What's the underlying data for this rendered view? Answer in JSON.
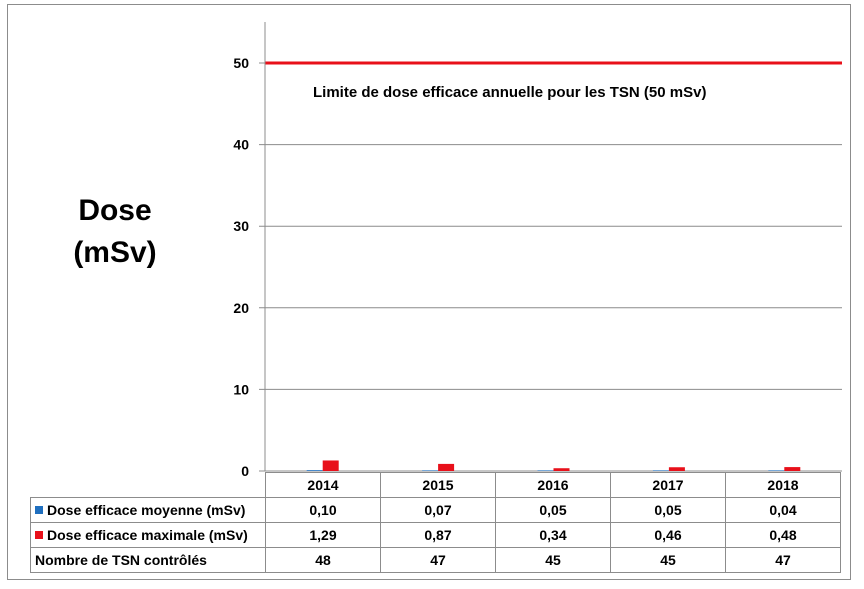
{
  "chart_data": {
    "type": "bar",
    "title": "",
    "ylabel_line1": "Dose",
    "ylabel_line2": "(mSv)",
    "ylim": [
      0,
      55
    ],
    "yticks": [
      0,
      10,
      20,
      30,
      40,
      50
    ],
    "grid": true,
    "categories": [
      "2014",
      "2015",
      "2016",
      "2017",
      "2018"
    ],
    "series": [
      {
        "name": "Dose efficace moyenne (mSv)",
        "color": "#1f6fbf",
        "values": [
          0.1,
          0.07,
          0.05,
          0.05,
          0.04
        ],
        "labels": [
          "0,10",
          "0,07",
          "0,05",
          "0,05",
          "0,04"
        ]
      },
      {
        "name": "Dose efficace maximale (mSv)",
        "color": "#e8101a",
        "values": [
          1.29,
          0.87,
          0.34,
          0.46,
          0.48
        ],
        "labels": [
          "1,29",
          "0,87",
          "0,34",
          "0,46",
          "0,48"
        ]
      }
    ],
    "table_row": {
      "name": "Nombre de TSN contrôlés",
      "values": [
        "48",
        "47",
        "45",
        "45",
        "47"
      ]
    },
    "reference_line": {
      "value": 50,
      "color": "#e8101a",
      "label": "Limite de dose efficace annuelle pour les TSN  (50 mSv)"
    }
  }
}
